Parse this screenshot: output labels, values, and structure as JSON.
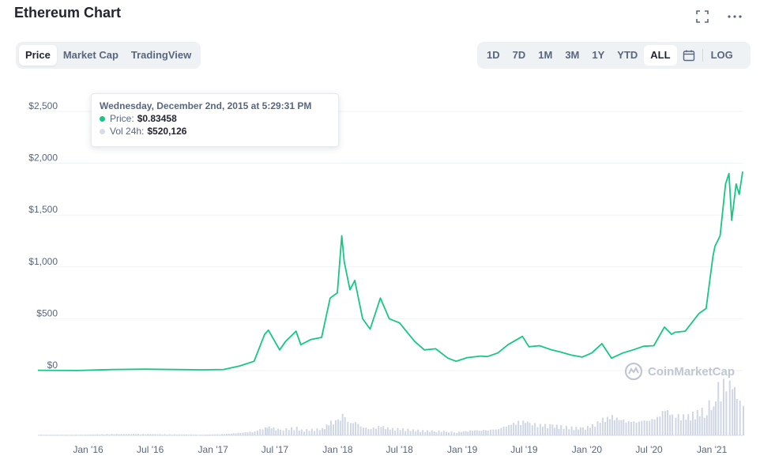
{
  "header": {
    "title": "Ethereum Chart"
  },
  "icons": {
    "expand": "expand-icon",
    "more": "more-dots-icon",
    "calendar": "calendar-icon"
  },
  "tabs": [
    {
      "label": "Price",
      "active": true
    },
    {
      "label": "Market Cap",
      "active": false
    },
    {
      "label": "TradingView",
      "active": false
    }
  ],
  "ranges": [
    {
      "label": "1D",
      "active": false
    },
    {
      "label": "7D",
      "active": false
    },
    {
      "label": "1M",
      "active": false
    },
    {
      "label": "3M",
      "active": false
    },
    {
      "label": "1Y",
      "active": false
    },
    {
      "label": "YTD",
      "active": false
    },
    {
      "label": "ALL",
      "active": true
    }
  ],
  "log_label": "LOG",
  "tooltip": {
    "date": "Wednesday, December 2nd, 2015 at 5:29:31 PM",
    "price_label": "Price:",
    "price_value": "$0.83458",
    "vol_label": "Vol 24h:",
    "vol_value": "$520,126"
  },
  "watermark": "CoinMarketCap",
  "colors": {
    "line": "#16c784",
    "volume": "#cfd6e4",
    "grid": "#eff2f5",
    "axis_text": "#58667e"
  },
  "chart_data": {
    "type": "line",
    "title": "",
    "ylabel": "",
    "ylim": [
      0,
      2500
    ],
    "y_ticks": [
      "$0",
      "$500",
      "$1,000",
      "$1,500",
      "$2,000",
      "$2,500"
    ],
    "x_ticks": [
      "Jan '16",
      "Jul '16",
      "Jan '17",
      "Jul '17",
      "Jan '18",
      "Jul '18",
      "Jan '19",
      "Jul '19",
      "Jan '20",
      "Jul '20",
      "Jan '21"
    ],
    "grid": true,
    "series": [
      {
        "x": [
          "2015-08-07",
          "2015-12-01",
          "2016-03-15",
          "2016-06-15",
          "2016-12-01",
          "2017-02-01",
          "2017-03-20",
          "2017-05-01",
          "2017-06-01",
          "2017-06-12",
          "2017-07-15",
          "2017-08-01",
          "2017-09-01",
          "2017-09-15",
          "2017-10-15",
          "2017-11-15",
          "2017-12-10",
          "2017-12-31",
          "2018-01-13",
          "2018-01-20",
          "2018-02-06",
          "2018-02-20",
          "2018-03-15",
          "2018-04-06",
          "2018-05-06",
          "2018-06-01",
          "2018-07-01",
          "2018-08-15",
          "2018-09-12",
          "2018-10-15",
          "2018-11-20",
          "2018-12-14",
          "2019-01-15",
          "2019-02-24",
          "2019-03-15",
          "2019-04-15",
          "2019-05-15",
          "2019-06-26",
          "2019-07-15",
          "2019-08-15",
          "2019-09-20",
          "2019-10-15",
          "2019-11-15",
          "2019-12-18",
          "2020-01-15",
          "2020-02-14",
          "2020-03-13",
          "2020-04-15",
          "2020-05-15",
          "2020-06-15",
          "2020-07-15",
          "2020-08-15",
          "2020-09-05",
          "2020-09-15",
          "2020-10-15",
          "2020-11-24",
          "2020-12-15",
          "2021-01-04",
          "2021-01-10",
          "2021-01-25",
          "2021-02-10",
          "2021-02-20",
          "2021-02-28",
          "2021-03-13",
          "2021-03-22",
          "2021-04-01"
        ],
        "values": [
          3,
          1,
          11,
          14,
          8,
          11,
          45,
          90,
          350,
          390,
          200,
          280,
          380,
          250,
          300,
          320,
          700,
          750,
          1300,
          1050,
          780,
          870,
          500,
          400,
          700,
          500,
          460,
          280,
          200,
          210,
          120,
          90,
          125,
          140,
          135,
          170,
          250,
          330,
          230,
          240,
          200,
          180,
          150,
          130,
          170,
          260,
          120,
          170,
          200,
          235,
          240,
          420,
          350,
          370,
          380,
          550,
          600,
          1100,
          1200,
          1300,
          1800,
          1900,
          1450,
          1800,
          1700,
          1920
        ]
      }
    ],
    "volume_relative": [
      0.01,
      0.01,
      0.02,
      0.02,
      0.01,
      0.02,
      0.04,
      0.06,
      0.12,
      0.13,
      0.08,
      0.1,
      0.12,
      0.08,
      0.09,
      0.1,
      0.2,
      0.22,
      0.3,
      0.26,
      0.18,
      0.2,
      0.12,
      0.1,
      0.14,
      0.1,
      0.1,
      0.08,
      0.07,
      0.07,
      0.06,
      0.05,
      0.07,
      0.08,
      0.08,
      0.1,
      0.16,
      0.22,
      0.18,
      0.16,
      0.15,
      0.14,
      0.12,
      0.11,
      0.15,
      0.24,
      0.28,
      0.22,
      0.2,
      0.22,
      0.24,
      0.38,
      0.34,
      0.3,
      0.28,
      0.36,
      0.4,
      0.62,
      0.75,
      0.7,
      0.85,
      1.0,
      0.8,
      0.6,
      0.55,
      0.45
    ]
  }
}
